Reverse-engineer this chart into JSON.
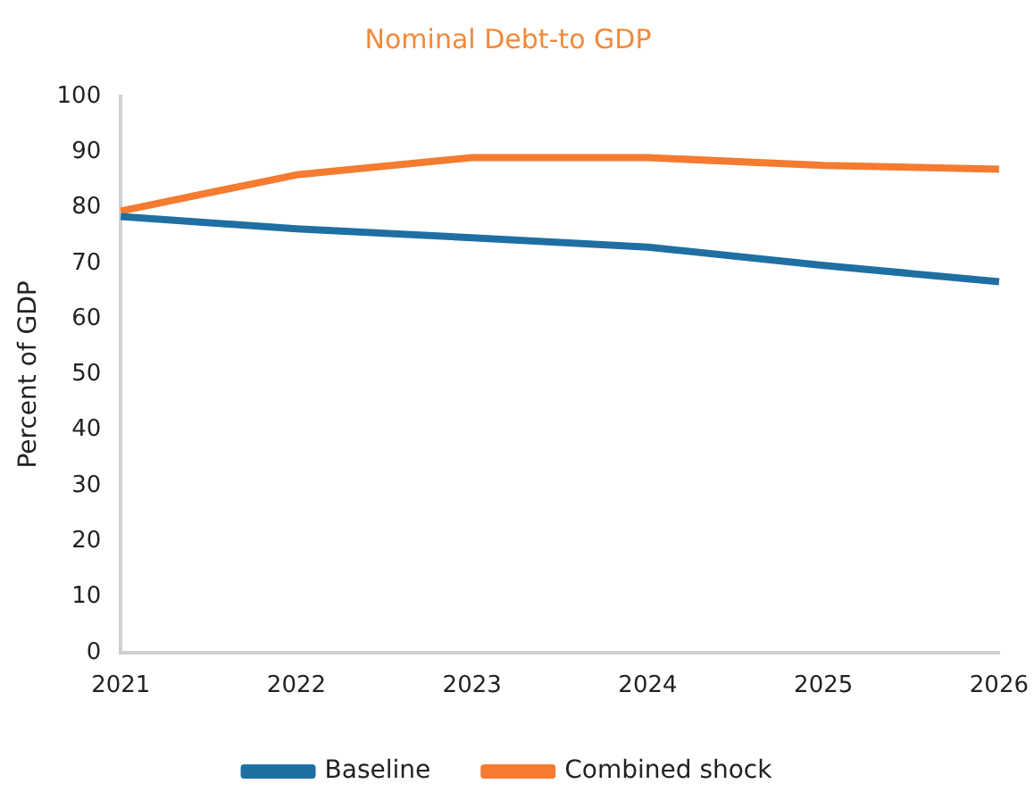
{
  "chart_data": {
    "type": "line",
    "title": "Nominal Debt-to GDP",
    "ylabel": "Percent of GDP",
    "categories": [
      "2021",
      "2022",
      "2023",
      "2024",
      "2025",
      "2026"
    ],
    "series": [
      {
        "name": "Baseline",
        "color": "#1f6fa3",
        "values": [
          78.4,
          76.2,
          74.6,
          72.9,
          69.6,
          66.7
        ]
      },
      {
        "name": "Combined shock",
        "color": "#f47b30",
        "values": [
          79.4,
          85.9,
          89,
          89,
          87.6,
          86.9
        ]
      }
    ],
    "ylim": [
      0,
      100
    ],
    "yticks": [
      0,
      10,
      20,
      30,
      40,
      50,
      60,
      70,
      80,
      90,
      100
    ],
    "grid": false,
    "legend": "bottom",
    "marker": "none",
    "line_style": "solid"
  }
}
